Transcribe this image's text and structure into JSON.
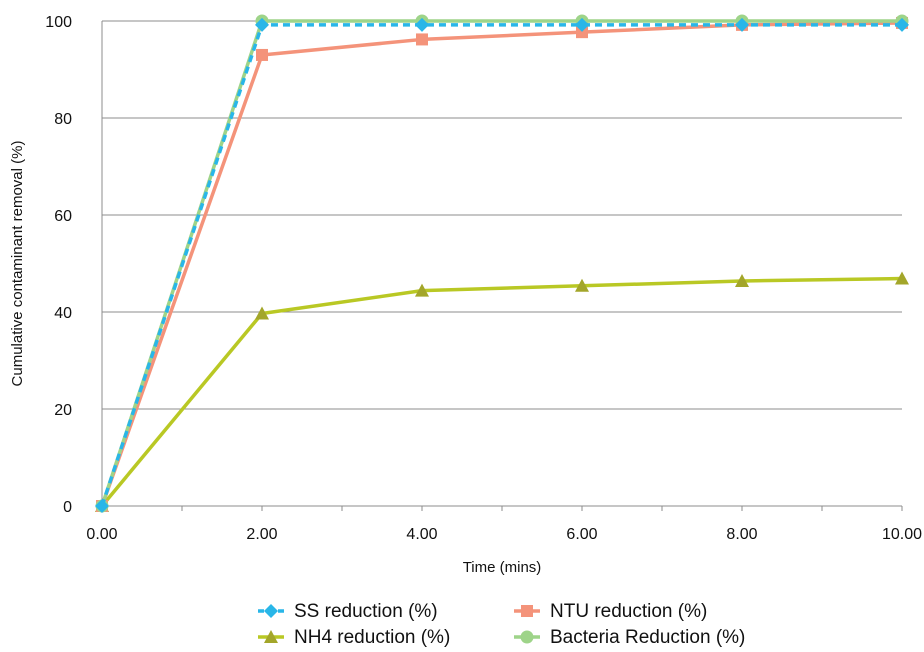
{
  "chart_data": {
    "type": "line",
    "title": "",
    "xlabel": "Time (mins)",
    "ylabel": "Cumulative contaminant removal (%)",
    "x": [
      0,
      2,
      4,
      6,
      8,
      10
    ],
    "x_tick_labels": [
      "0.00",
      "2.00",
      "4.00",
      "6.00",
      "8.00",
      "10.00"
    ],
    "y_ticks": [
      0,
      20,
      40,
      60,
      80,
      100
    ],
    "xlim": [
      0,
      10
    ],
    "ylim": [
      0,
      100
    ],
    "grid": "horizontal",
    "legend_position": "bottom",
    "series": [
      {
        "name": "SS reduction (%)",
        "values": [
          0,
          99.2,
          99.2,
          99.2,
          99.2,
          99.2
        ],
        "color": "#29b6e8",
        "dash": true,
        "marker": "diamond"
      },
      {
        "name": "NTU reduction (%)",
        "values": [
          0,
          93,
          96.2,
          97.7,
          99.2,
          99.6
        ],
        "color": "#f4937a",
        "dash": false,
        "marker": "square"
      },
      {
        "name": "NH4 reduction (%)",
        "values": [
          0,
          39.7,
          44.4,
          45.4,
          46.4,
          46.9
        ],
        "color": "#b9c824",
        "marker_color": "#a3a62a",
        "dash": false,
        "marker": "triangle"
      },
      {
        "name": "Bacteria Reduction  (%)",
        "values": [
          0,
          100,
          100,
          100,
          100,
          100
        ],
        "color": "#9ed489",
        "dash": false,
        "marker": "circle"
      }
    ]
  }
}
